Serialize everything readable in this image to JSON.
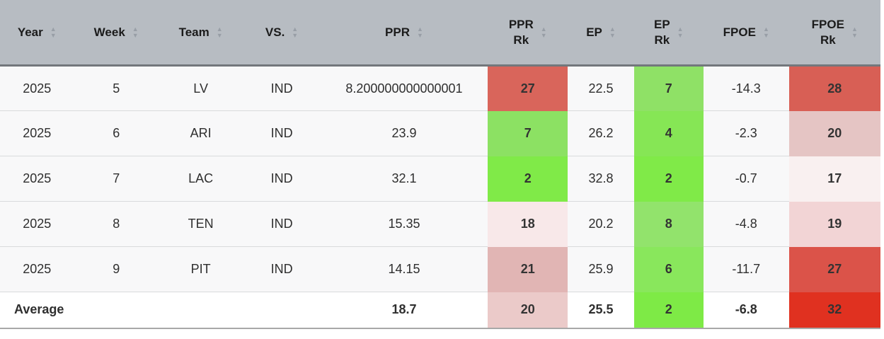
{
  "table": {
    "columns": [
      {
        "id": "year",
        "label": "Year",
        "sortable": true
      },
      {
        "id": "week",
        "label": "Week",
        "sortable": true
      },
      {
        "id": "team",
        "label": "Team",
        "sortable": true
      },
      {
        "id": "vs",
        "label": "VS.",
        "sortable": true
      },
      {
        "id": "ppr",
        "label": "PPR",
        "sortable": true
      },
      {
        "id": "ppr_rk",
        "label": "PPR\nRk",
        "sortable": true
      },
      {
        "id": "ep",
        "label": "EP",
        "sortable": true
      },
      {
        "id": "ep_rk",
        "label": "EP\nRk",
        "sortable": true
      },
      {
        "id": "fpoe",
        "label": "FPOE",
        "sortable": true
      },
      {
        "id": "fpoe_rk",
        "label": "FPOE\nRk",
        "sortable": true
      }
    ],
    "rows": [
      {
        "cells": [
          {
            "text": "2025"
          },
          {
            "text": "5"
          },
          {
            "text": "LV"
          },
          {
            "text": "IND"
          },
          {
            "text": "8.200000000000001"
          },
          {
            "text": "27",
            "bg": "#d9655b"
          },
          {
            "text": "22.5"
          },
          {
            "text": "7",
            "bg": "#8fe166"
          },
          {
            "text": "-14.3"
          },
          {
            "text": "28",
            "bg": "#d85f55"
          }
        ]
      },
      {
        "cells": [
          {
            "text": "2025"
          },
          {
            "text": "6"
          },
          {
            "text": "ARI"
          },
          {
            "text": "IND"
          },
          {
            "text": "23.9"
          },
          {
            "text": "7",
            "bg": "#8ce163"
          },
          {
            "text": "26.2"
          },
          {
            "text": "4",
            "bg": "#86e655"
          },
          {
            "text": "-2.3"
          },
          {
            "text": "20",
            "bg": "#e5c5c4"
          }
        ]
      },
      {
        "cells": [
          {
            "text": "2025"
          },
          {
            "text": "7"
          },
          {
            "text": "LAC"
          },
          {
            "text": "IND"
          },
          {
            "text": "32.1"
          },
          {
            "text": "2",
            "bg": "#80ea48"
          },
          {
            "text": "32.8"
          },
          {
            "text": "2",
            "bg": "#80ea48"
          },
          {
            "text": "-0.7"
          },
          {
            "text": "17",
            "bg": "#f9f0f0"
          }
        ]
      },
      {
        "cells": [
          {
            "text": "2025"
          },
          {
            "text": "8"
          },
          {
            "text": "TEN"
          },
          {
            "text": "IND"
          },
          {
            "text": "15.35"
          },
          {
            "text": "18",
            "bg": "#f8e8e9"
          },
          {
            "text": "20.2"
          },
          {
            "text": "8",
            "bg": "#92e36c"
          },
          {
            "text": "-4.8"
          },
          {
            "text": "19",
            "bg": "#f2d4d5"
          }
        ]
      },
      {
        "cells": [
          {
            "text": "2025"
          },
          {
            "text": "9"
          },
          {
            "text": "PIT"
          },
          {
            "text": "IND"
          },
          {
            "text": "14.15"
          },
          {
            "text": "21",
            "bg": "#e1b5b4"
          },
          {
            "text": "25.9"
          },
          {
            "text": "6",
            "bg": "#89e75c"
          },
          {
            "text": "-11.7"
          },
          {
            "text": "27",
            "bg": "#db5349"
          }
        ]
      }
    ],
    "average_row": {
      "cells": [
        {
          "text": "Average"
        },
        {
          "text": ""
        },
        {
          "text": ""
        },
        {
          "text": ""
        },
        {
          "text": "18.7"
        },
        {
          "text": "20",
          "bg": "#ebcac9"
        },
        {
          "text": "25.5"
        },
        {
          "text": "2",
          "bg": "#7eea46"
        },
        {
          "text": "-6.8"
        },
        {
          "text": "32",
          "bg": "#e03120"
        }
      ]
    }
  },
  "icons": {
    "sort_up": "▲",
    "sort_down": "▼"
  },
  "colors": {
    "header_bg": "#b7bcc2",
    "rank_best_green": "#7eea46",
    "rank_worst_red": "#e03120"
  }
}
